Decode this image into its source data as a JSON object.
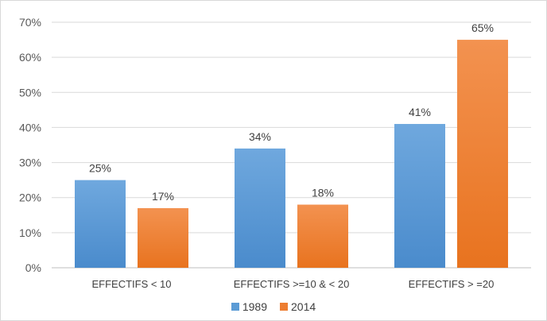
{
  "chart_data": {
    "type": "bar",
    "title": "",
    "xlabel": "",
    "ylabel": "",
    "categories": [
      "EFFECTIFS < 10",
      "EFFECTIFS >=10 & < 20",
      "EFFECTIFS > =20"
    ],
    "series": [
      {
        "name": "1989",
        "values": [
          25,
          34,
          41
        ],
        "labels": [
          "25%",
          "34%",
          "41%"
        ],
        "color": "#5b9bd5"
      },
      {
        "name": "2014",
        "values": [
          17,
          18,
          65
        ],
        "labels": [
          "17%",
          "18%",
          "65%"
        ],
        "color": "#ed7d31"
      }
    ],
    "ylim": [
      0,
      70
    ],
    "ytick_labels": [
      "0%",
      "10%",
      "20%",
      "30%",
      "40%",
      "50%",
      "60%",
      "70%"
    ],
    "grid": true,
    "legend_position": "bottom"
  }
}
